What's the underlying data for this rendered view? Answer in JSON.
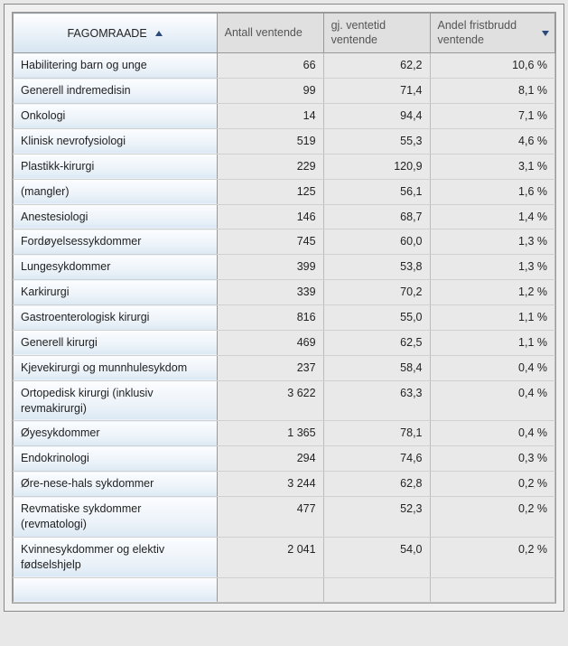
{
  "table": {
    "columns": [
      {
        "label": "FAGOMRAADE",
        "sort": "asc",
        "firstCol": true
      },
      {
        "label": "Antall ventende",
        "sort": null,
        "firstCol": false
      },
      {
        "label": "gj. ventetid ventende",
        "sort": null,
        "firstCol": false
      },
      {
        "label": "Andel fristbrudd ventende",
        "sort": "desc",
        "firstCol": false
      }
    ],
    "rows": [
      {
        "name": "Habilitering barn og unge",
        "count": "66",
        "wait": "62,2",
        "share": "10,6 %"
      },
      {
        "name": "Generell indremedisin",
        "count": "99",
        "wait": "71,4",
        "share": "8,1 %"
      },
      {
        "name": "Onkologi",
        "count": "14",
        "wait": "94,4",
        "share": "7,1 %"
      },
      {
        "name": "Klinisk nevrofysiologi",
        "count": "519",
        "wait": "55,3",
        "share": "4,6 %"
      },
      {
        "name": "Plastikk-kirurgi",
        "count": "229",
        "wait": "120,9",
        "share": "3,1 %"
      },
      {
        "name": "(mangler)",
        "count": "125",
        "wait": "56,1",
        "share": "1,6 %"
      },
      {
        "name": "Anestesiologi",
        "count": "146",
        "wait": "68,7",
        "share": "1,4 %"
      },
      {
        "name": "Fordøyelsessykdommer",
        "count": "745",
        "wait": "60,0",
        "share": "1,3 %"
      },
      {
        "name": "Lungesykdommer",
        "count": "399",
        "wait": "53,8",
        "share": "1,3 %"
      },
      {
        "name": "Karkirurgi",
        "count": "339",
        "wait": "70,2",
        "share": "1,2 %"
      },
      {
        "name": "Gastroenterologisk kirurgi",
        "count": "816",
        "wait": "55,0",
        "share": "1,1 %"
      },
      {
        "name": "Generell kirurgi",
        "count": "469",
        "wait": "62,5",
        "share": "1,1 %"
      },
      {
        "name": "Kjevekirurgi og munnhulesykdom",
        "count": "237",
        "wait": "58,4",
        "share": "0,4 %"
      },
      {
        "name": "Ortopedisk kirurgi (inklusiv revmakirurgi)",
        "count": "3 622",
        "wait": "63,3",
        "share": "0,4 %"
      },
      {
        "name": "Øyesykdommer",
        "count": "1 365",
        "wait": "78,1",
        "share": "0,4 %"
      },
      {
        "name": "Endokrinologi",
        "count": "294",
        "wait": "74,6",
        "share": "0,3 %"
      },
      {
        "name": "Øre-nese-hals sykdommer",
        "count": "3 244",
        "wait": "62,8",
        "share": "0,2 %"
      },
      {
        "name": "Revmatiske sykdommer (revmatologi)",
        "count": "477",
        "wait": "52,3",
        "share": "0,2 %"
      },
      {
        "name": "Kvinnesykdommer og elektiv fødselshjelp",
        "count": "2 041",
        "wait": "54,0",
        "share": "0,2 %"
      }
    ]
  }
}
